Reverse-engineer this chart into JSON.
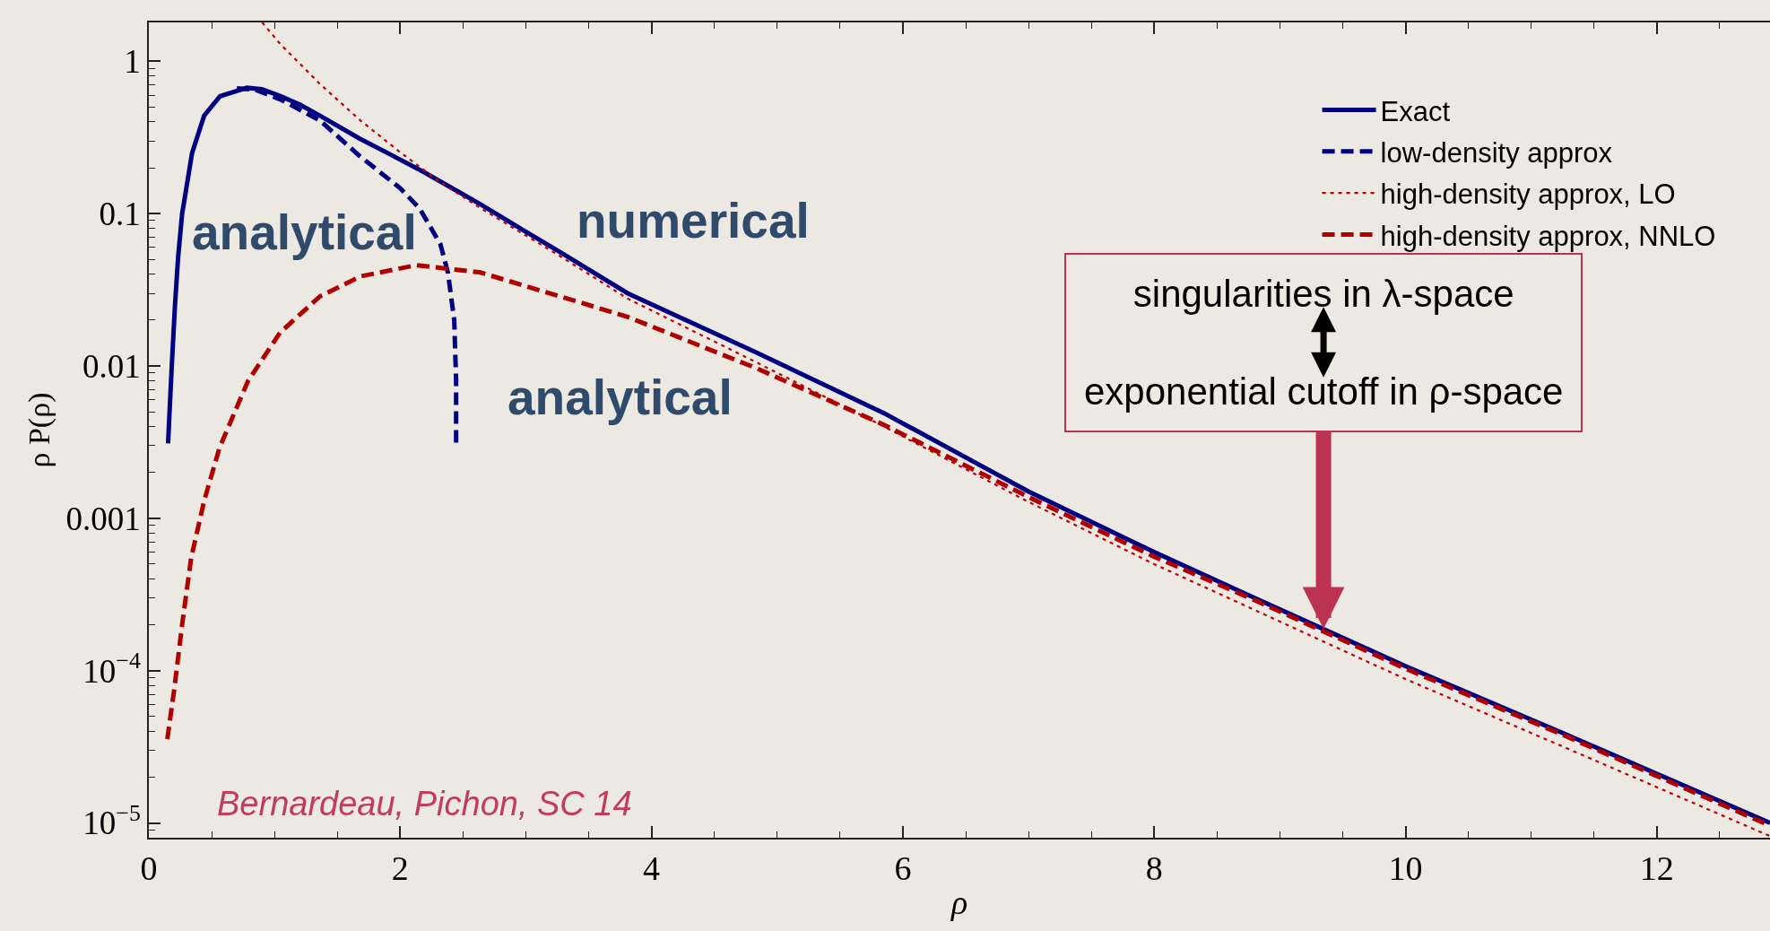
{
  "chart_data": {
    "type": "line",
    "xlabel": "ρ",
    "ylabel": "ρ P(ρ)",
    "log": "y",
    "grid": false,
    "legend": "top right",
    "marker": "none",
    "xlim": [
      0,
      12.9
    ],
    "xticks": [
      0,
      2,
      4,
      6,
      8,
      10,
      12,
      {
        "value": 0.5,
        "label": null
      },
      {
        "value": 1,
        "label": null
      },
      {
        "value": 1.5,
        "label": null
      },
      {
        "value": 2.5,
        "label": null
      },
      {
        "value": 3,
        "label": null
      },
      {
        "value": 3.5,
        "label": null
      },
      {
        "value": 4.5,
        "label": null
      },
      {
        "value": 5,
        "label": null
      },
      {
        "value": 5.5,
        "label": null
      },
      {
        "value": 6.5,
        "label": null
      },
      {
        "value": 7,
        "label": null
      },
      {
        "value": 7.5,
        "label": null
      },
      {
        "value": 8.5,
        "label": null
      },
      {
        "value": 9,
        "label": null
      },
      {
        "value": 9.5,
        "label": null
      },
      {
        "value": 10.5,
        "label": null
      },
      {
        "value": 11,
        "label": null
      },
      {
        "value": 11.5,
        "label": null
      },
      {
        "value": 12.5,
        "label": null
      }
    ],
    "ylim": [
      8e-06,
      1.8
    ],
    "yticks": [
      1,
      0.1,
      0.01,
      0.001,
      {
        "value": 0.0001,
        "label": "10$^{−4}$"
      },
      {
        "value": 1e-05,
        "label": "10$^{−5}$"
      },
      {
        "value": 9e-06,
        "label": null
      },
      {
        "value": 2e-05,
        "label": null
      },
      {
        "value": 3e-05,
        "label": null
      },
      {
        "value": 4e-05,
        "label": null
      },
      {
        "value": 5e-05,
        "label": null
      },
      {
        "value": 6e-05,
        "label": null
      },
      {
        "value": 7e-05,
        "label": null
      },
      {
        "value": 8e-05,
        "label": null
      },
      {
        "value": 9e-05,
        "label": null
      },
      {
        "value": 0.0002,
        "label": null
      },
      {
        "value": 0.0003,
        "label": null
      },
      {
        "value": 0.0004,
        "label": null
      },
      {
        "value": 0.0005,
        "label": null
      },
      {
        "value": 0.0006,
        "label": null
      },
      {
        "value": 0.0007,
        "label": null
      },
      {
        "value": 0.0008,
        "label": null
      },
      {
        "value": 0.0009,
        "label": null
      },
      {
        "value": 0.002,
        "label": null
      },
      {
        "value": 0.003,
        "label": null
      },
      {
        "value": 0.004,
        "label": null
      },
      {
        "value": 0.005,
        "label": null
      },
      {
        "value": 0.006,
        "label": null
      },
      {
        "value": 0.007,
        "label": null
      },
      {
        "value": 0.008,
        "label": null
      },
      {
        "value": 0.009,
        "label": null
      },
      {
        "value": 0.02,
        "label": null
      },
      {
        "value": 0.03,
        "label": null
      },
      {
        "value": 0.04,
        "label": null
      },
      {
        "value": 0.05,
        "label": null
      },
      {
        "value": 0.06,
        "label": null
      },
      {
        "value": 0.07,
        "label": null
      },
      {
        "value": 0.08,
        "label": null
      },
      {
        "value": 0.09,
        "label": null
      },
      {
        "value": 0.2,
        "label": null
      },
      {
        "value": 0.3,
        "label": null
      },
      {
        "value": 0.4,
        "label": null
      },
      {
        "value": 0.5,
        "label": null
      },
      {
        "value": 0.6,
        "label": null
      },
      {
        "value": 0.7,
        "label": null
      },
      {
        "value": 0.8,
        "label": null
      },
      {
        "value": 0.9,
        "label": null
      }
    ],
    "series": [
      {
        "name": "Exact",
        "color": "#000080",
        "line_style": "solid",
        "x": [
          0.153,
          0.169,
          0.185,
          0.208,
          0.233,
          0.265,
          0.281,
          0.344,
          0.44,
          0.567,
          0.78,
          0.9,
          1.05,
          1.2,
          1.36,
          1.68,
          1.9,
          2.19,
          2.4,
          2.64,
          3.0,
          3.27,
          3.81,
          4.83,
          5.85,
          7.0,
          8.0,
          8.8,
          9.33,
          10.0,
          11.28,
          12.0,
          12.9
        ],
        "values": [
          0.0031,
          0.0059,
          0.011,
          0.025,
          0.052,
          0.1,
          0.12,
          0.25,
          0.44,
          0.59,
          0.67,
          0.655,
          0.59,
          0.52,
          0.44,
          0.31,
          0.25,
          0.187,
          0.149,
          0.115,
          0.076,
          0.056,
          0.03,
          0.0123,
          0.0049,
          0.0015,
          0.0006,
          0.0003,
          0.00019,
          0.000107,
          3.8e-05,
          2.1e-05,
          1e-05
        ]
      },
      {
        "name": "low-density approx",
        "color": "#000080",
        "line_style": "dashed",
        "x": [
          0.7,
          0.85,
          1.05,
          1.36,
          1.68,
          2.0,
          2.155,
          2.32,
          2.38,
          2.43,
          2.445,
          2.445
        ],
        "values": [
          0.665,
          0.65,
          0.56,
          0.41,
          0.238,
          0.147,
          0.108,
          0.063,
          0.041,
          0.02,
          0.008,
          0.0031
        ]
      },
      {
        "name": "high-density approx, LO",
        "color": "#c00000",
        "line_style": "dotted",
        "x": [
          0.902,
          1.045,
          1.204,
          1.361,
          1.682,
          2.0,
          2.318,
          2.637,
          3.274,
          3.81,
          4.83,
          5.85,
          7.0,
          8.0,
          8.8,
          10.0,
          11.28,
          12.9
        ],
        "values": [
          1.8,
          1.3,
          0.96,
          0.71,
          0.41,
          0.253,
          0.161,
          0.109,
          0.0525,
          0.0277,
          0.0106,
          0.004,
          0.00128,
          0.0005,
          0.00025,
          8.8e-05,
          3.1e-05,
          8.2e-06
        ]
      },
      {
        "name": "high-density approx, NNLO",
        "color": "#b00000",
        "line_style": "dashed",
        "x": [
          0.147,
          0.199,
          0.268,
          0.337,
          0.44,
          0.562,
          0.79,
          1.045,
          1.361,
          1.682,
          2.13,
          2.637,
          3.274,
          3.81,
          4.83,
          5.85,
          7.0,
          8.0,
          8.8,
          10.0,
          11.28,
          12.9
        ],
        "values": [
          3.55e-05,
          7.2e-05,
          0.00021,
          0.00055,
          0.0013,
          0.0029,
          0.008,
          0.0166,
          0.0286,
          0.0387,
          0.0459,
          0.0411,
          0.0286,
          0.021,
          0.0097,
          0.0041,
          0.00138,
          0.00056,
          0.00029,
          0.000103,
          3.7e-05,
          9.6e-06
        ]
      }
    ],
    "annotations": [
      "analytical",
      "numerical",
      "analytical",
      "singularities in λ-space\nexponential cutoff in ρ-space",
      "Bernardeau, Pichon, SC 14"
    ]
  }
}
